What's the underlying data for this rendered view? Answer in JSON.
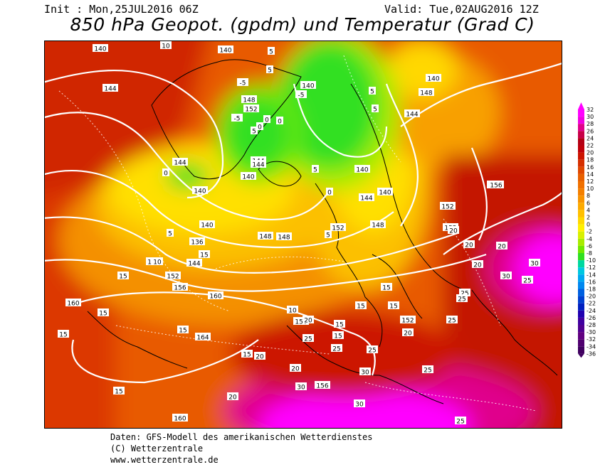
{
  "header": {
    "init": "Init : Mon,25JUL2016 06Z",
    "valid": "Valid: Tue,02AUG2016 12Z",
    "title": "850 hPa Geopot. (gpdm) und Temperatur (Grad C)"
  },
  "credits": {
    "line1": "Daten: GFS-Modell des amerikanischen Wetterdienstes",
    "line2": "(C) Wetterzentrale",
    "line3": "www.wetterzentrale.de"
  },
  "color_scale": {
    "ticks": [
      "32",
      "30",
      "28",
      "26",
      "24",
      "22",
      "20",
      "18",
      "16",
      "14",
      "12",
      "10",
      "8",
      "6",
      "4",
      "2",
      "0",
      "-2",
      "-4",
      "-6",
      "-8",
      "-10",
      "-12",
      "-14",
      "-16",
      "-18",
      "-20",
      "-22",
      "-24",
      "-26",
      "-28",
      "-30",
      "-32",
      "-34",
      "-36"
    ],
    "colors": [
      "#ff00ff",
      "#f000e0",
      "#e0008c",
      "#c80048",
      "#b40014",
      "#c0000a",
      "#cc1400",
      "#d63000",
      "#e04800",
      "#e86000",
      "#f07000",
      "#f48000",
      "#f89400",
      "#fcaa00",
      "#ffc000",
      "#ffd800",
      "#fff000",
      "#d8f000",
      "#a8ec00",
      "#70e800",
      "#30e020",
      "#00d8a0",
      "#00c8e0",
      "#00a8f0",
      "#0088f0",
      "#0060e0",
      "#0040d0",
      "#0020c0",
      "#2000b0",
      "#4000a0",
      "#500090",
      "#600080",
      "#500070",
      "#400060"
    ]
  },
  "geopotential_labels": [
    "140",
    "140",
    "144",
    "144",
    "148",
    "152",
    "140",
    "144",
    "140",
    "144",
    "148",
    "140",
    "144",
    "156",
    "140",
    "140",
    "140",
    "144",
    "148",
    "152",
    "152",
    "140",
    "136",
    "144",
    "152",
    "156",
    "160",
    "160",
    "164",
    "156",
    "152",
    "160",
    "156",
    "148",
    "148",
    "156",
    "152"
  ],
  "temperature_labels": [
    "10",
    "-5",
    "5",
    "5",
    "0",
    "0",
    "-5",
    "-5",
    "0",
    "0",
    "0",
    "5",
    "5",
    "20",
    "10",
    "15",
    "5",
    "15",
    "5",
    "20",
    "15",
    "15",
    "15",
    "15",
    "30",
    "30",
    "20",
    "20",
    "25",
    "25",
    "25",
    "30",
    "25",
    "30",
    "25",
    "20",
    "20",
    "15",
    "20",
    "15",
    "15",
    "15",
    "25",
    "25",
    "30",
    "25",
    "20",
    "25",
    "15",
    "20",
    "15",
    "10",
    "5",
    "10",
    "5"
  ]
}
